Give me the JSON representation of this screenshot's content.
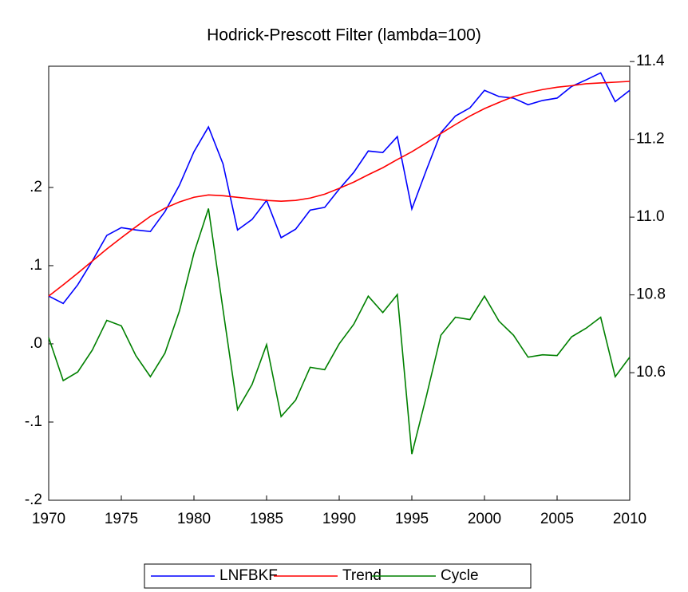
{
  "chart_data": {
    "type": "line",
    "title": "Hodrick-Prescott Filter (lambda=100)",
    "x": [
      1970,
      1971,
      1972,
      1973,
      1974,
      1975,
      1976,
      1977,
      1978,
      1979,
      1980,
      1981,
      1982,
      1983,
      1984,
      1985,
      1986,
      1987,
      1988,
      1989,
      1990,
      1991,
      1992,
      1993,
      1994,
      1995,
      1996,
      1997,
      1998,
      1999,
      2000,
      2001,
      2002,
      2003,
      2004,
      2005,
      2006,
      2007,
      2008,
      2009,
      2010
    ],
    "xlim": [
      1970,
      2010
    ],
    "xticks": [
      1970,
      1975,
      1980,
      1985,
      1990,
      1995,
      2000,
      2005,
      2010
    ],
    "ylim": [
      -0.2,
      0.355
    ],
    "yticks": [
      {
        "value": -0.2,
        "label": "-.2"
      },
      {
        "value": -0.1,
        "label": "-.1"
      },
      {
        "value": 0,
        "label": ".0"
      },
      {
        "value": 0.1,
        "label": ".1"
      },
      {
        "value": 0.2,
        "label": ".2"
      }
    ],
    "y2lim": [
      10.272,
      11.388
    ],
    "y2ticks": [
      10.6,
      10.8,
      {
        "value": 11,
        "label": "11.0"
      },
      11.2,
      11.4
    ],
    "series": [
      {
        "name": "LNFBKF",
        "color": "#0000ff",
        "axis": "y2",
        "values": [
          10.797,
          10.778,
          10.826,
          10.887,
          10.953,
          10.973,
          10.967,
          10.963,
          11.014,
          11.082,
          11.168,
          11.232,
          11.137,
          10.967,
          10.994,
          11.043,
          10.947,
          10.969,
          11.018,
          11.025,
          11.072,
          11.115,
          11.17,
          11.166,
          11.207,
          11.021,
          11.121,
          11.217,
          11.26,
          11.281,
          11.326,
          11.31,
          11.306,
          11.289,
          11.3,
          11.306,
          11.336,
          11.353,
          11.371,
          11.297,
          11.326
        ]
      },
      {
        "name": "Trend",
        "color": "#ff0000",
        "axis": "y2",
        "values": [
          10.797,
          10.826,
          10.856,
          10.887,
          10.918,
          10.947,
          10.975,
          11.002,
          11.023,
          11.039,
          11.051,
          11.057,
          11.055,
          11.051,
          11.047,
          11.043,
          11.041,
          11.043,
          11.049,
          11.059,
          11.074,
          11.09,
          11.109,
          11.127,
          11.148,
          11.168,
          11.191,
          11.215,
          11.238,
          11.26,
          11.279,
          11.295,
          11.31,
          11.32,
          11.328,
          11.334,
          11.338,
          11.343,
          11.345,
          11.347,
          11.349
        ]
      },
      {
        "name": "Cycle",
        "color": "#008000",
        "axis": "y",
        "values": [
          0.008,
          -0.047,
          -0.036,
          -0.008,
          0.03,
          0.023,
          -0.015,
          -0.042,
          -0.012,
          0.042,
          0.116,
          0.173,
          0.044,
          -0.084,
          -0.052,
          -0.001,
          -0.093,
          -0.072,
          -0.03,
          -0.033,
          0.0,
          0.025,
          0.061,
          0.04,
          0.063,
          -0.141,
          -0.067,
          0.011,
          0.034,
          0.031,
          0.061,
          0.029,
          0.011,
          -0.017,
          -0.014,
          -0.015,
          0.009,
          0.02,
          0.034,
          -0.042,
          -0.017
        ]
      }
    ]
  }
}
